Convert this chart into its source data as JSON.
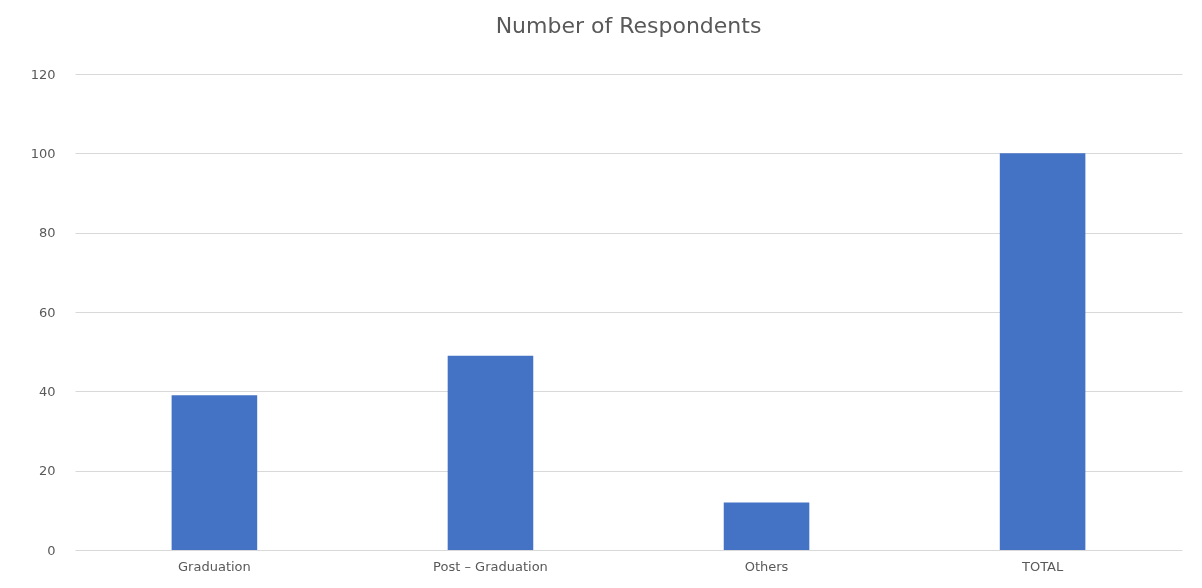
{
  "chart_data": {
    "type": "bar",
    "title": "Number of Respondents",
    "categories": [
      "Graduation",
      "Post – Graduation",
      "Others",
      "TOTAL"
    ],
    "values": [
      39,
      49,
      12,
      100
    ],
    "color": "#4472c4",
    "ylim": [
      0,
      120
    ],
    "yticks": [
      0,
      20,
      40,
      60,
      80,
      100,
      120
    ],
    "grid": "y"
  }
}
